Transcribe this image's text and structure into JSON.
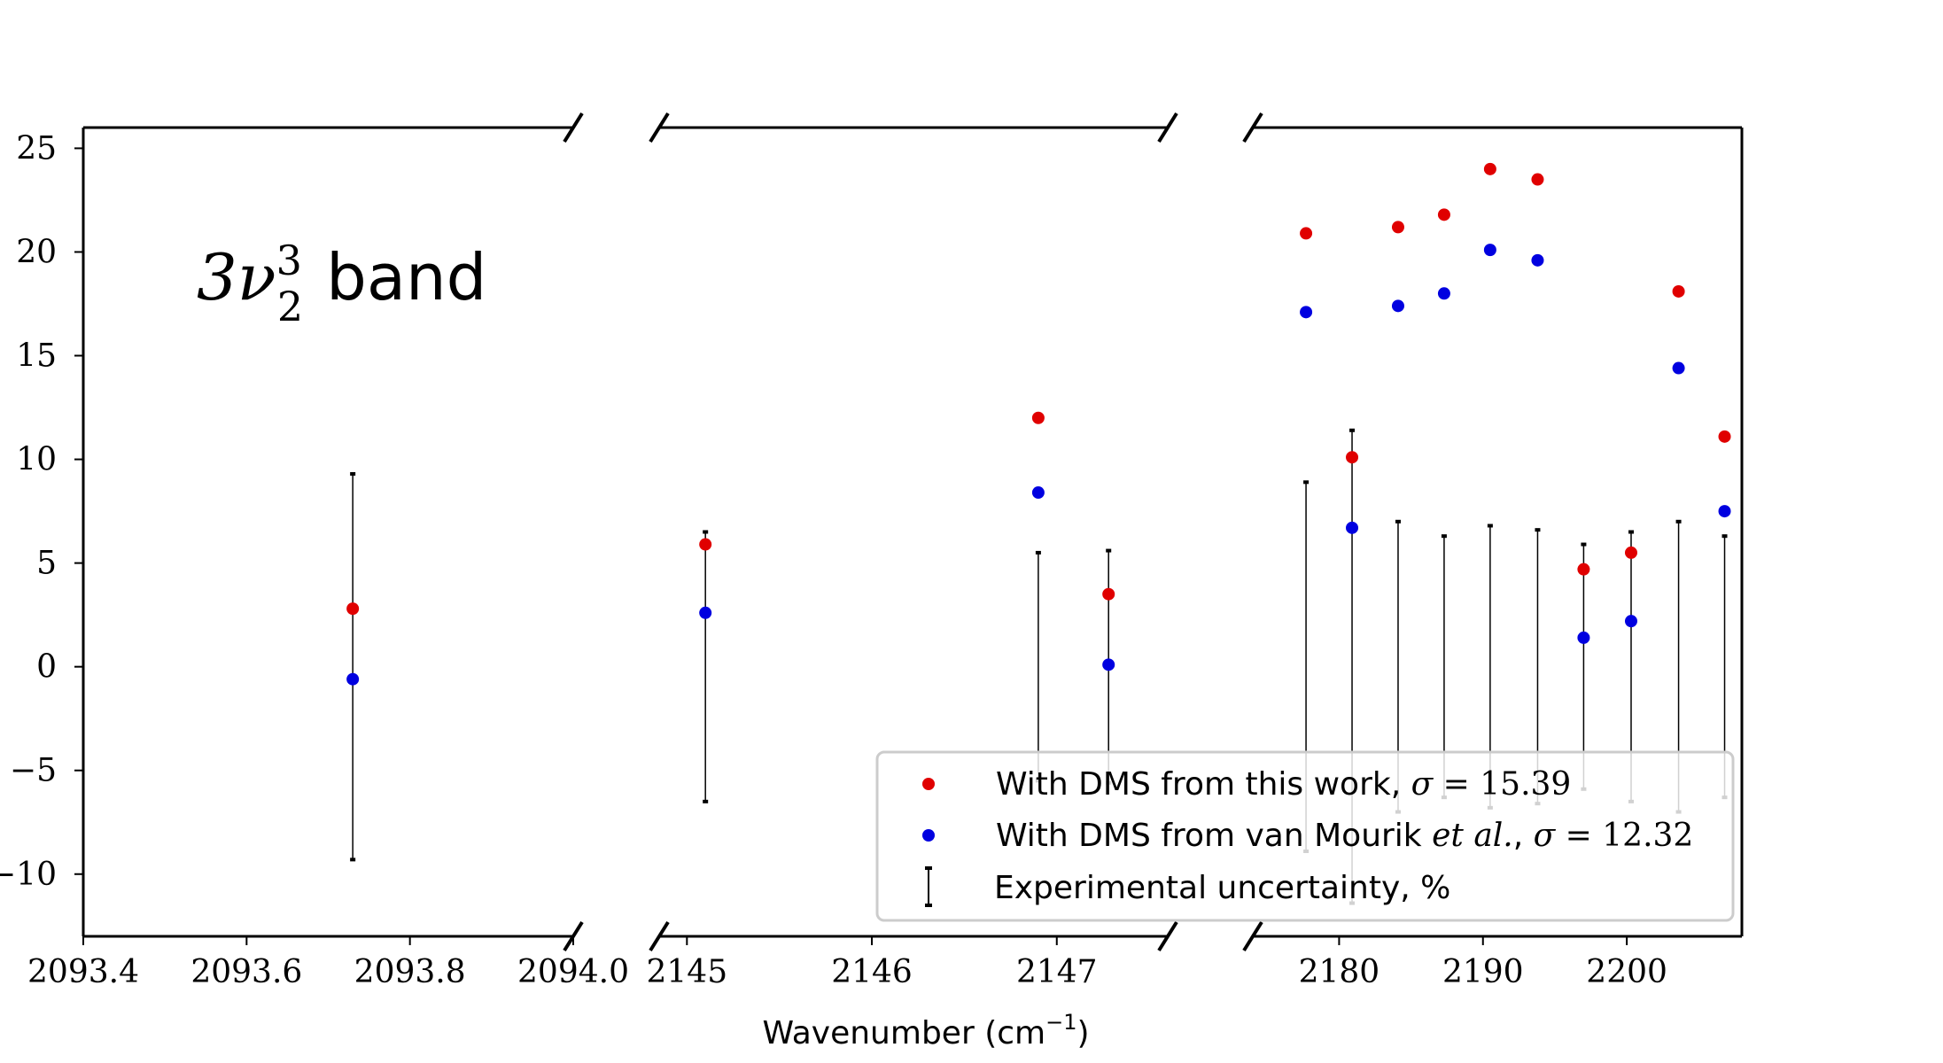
{
  "chart_data": {
    "type": "scatter",
    "annotation": {
      "math": "3ν",
      "sup": "3",
      "sub": "2",
      "word": "band"
    },
    "xlabel": {
      "text": "Wavenumber (cm",
      "sup": "−1",
      "close": ")"
    },
    "ylim": [
      -13,
      26
    ],
    "yticks": [
      -10,
      -5,
      0,
      5,
      10,
      15,
      20,
      25
    ],
    "ytick_labels": [
      "−10",
      "−5",
      "0",
      "5",
      "10",
      "15",
      "20",
      "25"
    ],
    "panels": [
      {
        "xlim": [
          2093.4,
          2094.0
        ],
        "xticks": [
          2093.4,
          2093.6,
          2093.8,
          2094.0
        ],
        "xtick_labels": [
          "2093.4",
          "2093.6",
          "2093.8",
          "2094.0"
        ]
      },
      {
        "xlim": [
          2144.85,
          2147.6
        ],
        "xticks": [
          2145,
          2146,
          2147
        ],
        "xtick_labels": [
          "2145",
          "2146",
          "2147"
        ]
      },
      {
        "xlim": [
          2174,
          2208
        ],
        "xticks": [
          2180,
          2190,
          2200
        ],
        "xtick_labels": [
          "2180",
          "2190",
          "2200"
        ]
      }
    ],
    "points": [
      {
        "x": 2093.73,
        "this_work": 2.8,
        "van_mourik": -0.6,
        "uncertainty": 9.3
      },
      {
        "x": 2145.1,
        "this_work": 5.9,
        "van_mourik": 2.6,
        "uncertainty": 6.5
      },
      {
        "x": 2146.9,
        "this_work": 12.0,
        "van_mourik": 8.4,
        "uncertainty": 5.5
      },
      {
        "x": 2147.28,
        "this_work": 3.5,
        "van_mourik": 0.1,
        "uncertainty": 5.6
      },
      {
        "x": 2177.7,
        "this_work": 20.9,
        "van_mourik": 17.1,
        "uncertainty": 8.9
      },
      {
        "x": 2180.9,
        "this_work": 10.1,
        "van_mourik": 6.7,
        "uncertainty": 11.4
      },
      {
        "x": 2184.1,
        "this_work": 21.2,
        "van_mourik": 17.4,
        "uncertainty": 7.0
      },
      {
        "x": 2187.3,
        "this_work": 21.8,
        "van_mourik": 18.0,
        "uncertainty": 6.3
      },
      {
        "x": 2190.5,
        "this_work": 24.0,
        "van_mourik": 20.1,
        "uncertainty": 6.8
      },
      {
        "x": 2193.8,
        "this_work": 23.5,
        "van_mourik": 19.6,
        "uncertainty": 6.6
      },
      {
        "x": 2197.0,
        "this_work": 4.7,
        "van_mourik": 1.4,
        "uncertainty": 5.9
      },
      {
        "x": 2200.3,
        "this_work": 5.5,
        "van_mourik": 2.2,
        "uncertainty": 6.5
      },
      {
        "x": 2203.6,
        "this_work": 18.1,
        "van_mourik": 14.4,
        "uncertainty": 7.0
      },
      {
        "x": 2206.8,
        "this_work": 11.1,
        "van_mourik": 7.5,
        "uncertainty": 6.3
      }
    ],
    "series": [
      {
        "name": "With DMS from this work, σ = 15.39",
        "color": "#e00000",
        "key": "this_work",
        "label_main": "With DMS from this work, ",
        "label_sigma": "σ",
        "label_eq": " = 15.39"
      },
      {
        "name": "With DMS from van Mourik et al., σ = 12.32",
        "color": "#0000e0",
        "key": "van_mourik",
        "label_main": "With DMS from van Mourik ",
        "label_etal": "et al.",
        "label_sigma": "σ",
        "label_eq": " = 12.32"
      }
    ],
    "errorbar_legend": "Experimental uncertainty, %",
    "errorbar_color": "#000000",
    "legend_position": "lower right",
    "grid": false
  }
}
